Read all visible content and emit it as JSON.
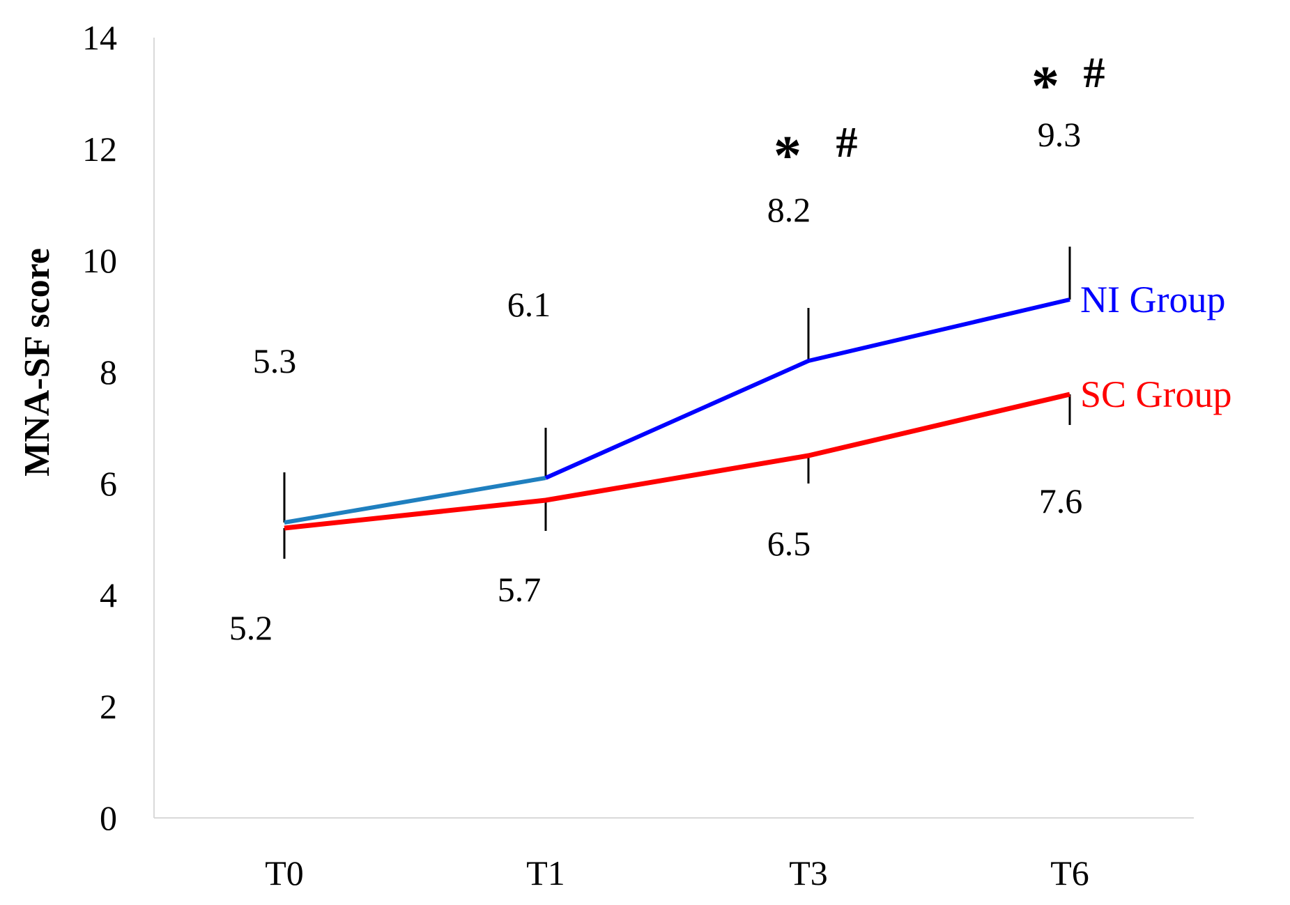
{
  "chart_data": {
    "type": "line",
    "categories": [
      "T0",
      "T1",
      "T3",
      "T6"
    ],
    "ylabel": "MNA-SF score",
    "xlabel": "",
    "ylim": [
      0,
      14
    ],
    "yticks": [
      0,
      2,
      4,
      6,
      8,
      10,
      12,
      14
    ],
    "grid": false,
    "series": [
      {
        "name": "NI Group",
        "color": "#0000ff",
        "first_segment_color": "#1f7fbf",
        "values": [
          5.3,
          6.1,
          8.2,
          9.3
        ],
        "value_labels": [
          "5.3",
          "6.1",
          "8.2",
          "9.3"
        ],
        "error_upward": [
          0.9,
          0.9,
          0.95,
          0.95
        ]
      },
      {
        "name": "SC Group",
        "color": "#ff0000",
        "values": [
          5.2,
          5.7,
          6.5,
          7.6
        ],
        "value_labels": [
          "5.2",
          "5.7",
          "6.5",
          "7.6"
        ],
        "error_downward": [
          0.55,
          0.55,
          0.5,
          0.55
        ]
      }
    ],
    "annotations": [
      {
        "category": "T3",
        "symbols": [
          "*",
          "#"
        ]
      },
      {
        "category": "T6",
        "symbols": [
          "*",
          "#"
        ]
      }
    ]
  }
}
